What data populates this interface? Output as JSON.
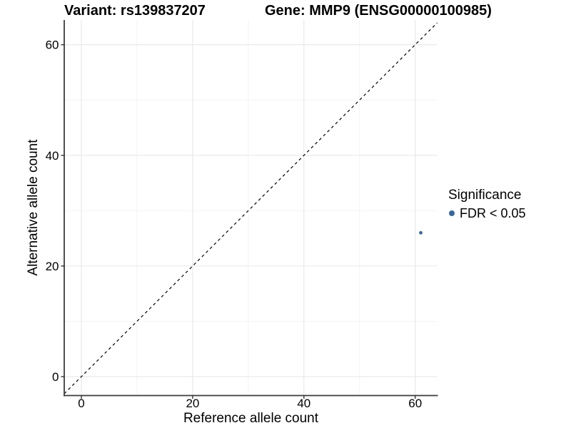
{
  "figure": {
    "title_left": "Variant: rs139837207",
    "title_right": "Gene: MMP9 (ENSG00000100985)"
  },
  "chart_data": {
    "type": "scatter",
    "title": "Variant: rs139837207   Gene: MMP9 (ENSG00000100985)",
    "xlabel": "Reference allele count",
    "ylabel": "Alternative allele count",
    "xlim": [
      -3.08,
      63.95
    ],
    "ylim": [
      -3.42,
      64.47
    ],
    "xticks": [
      0,
      20,
      40,
      60
    ],
    "yticks": [
      0,
      20,
      40,
      60
    ],
    "minor_xticks": [
      10,
      30,
      50
    ],
    "minor_yticks": [
      10,
      30,
      50
    ],
    "grid": "major and minor, light gray on white",
    "points": [
      {
        "x": 61,
        "y": 26,
        "series": "FDR < 0.05"
      }
    ],
    "point_radius": 2.4,
    "reference_line": {
      "kind": "identity y=x",
      "style": "dashed",
      "dash": "4,4"
    },
    "legend": {
      "title": "Significance",
      "position": "right",
      "items": [
        {
          "label": "FDR < 0.05",
          "color": "#35689F"
        }
      ]
    },
    "colors": {
      "point": "#35689F",
      "identity_line": "#000000",
      "grid_major": "#e7e7e7",
      "grid_minor": "#f2f2f2",
      "axis_line": "#3c3c3c",
      "tick_mark": "#333333",
      "tick_label": "#000000",
      "background": "#ffffff"
    }
  }
}
